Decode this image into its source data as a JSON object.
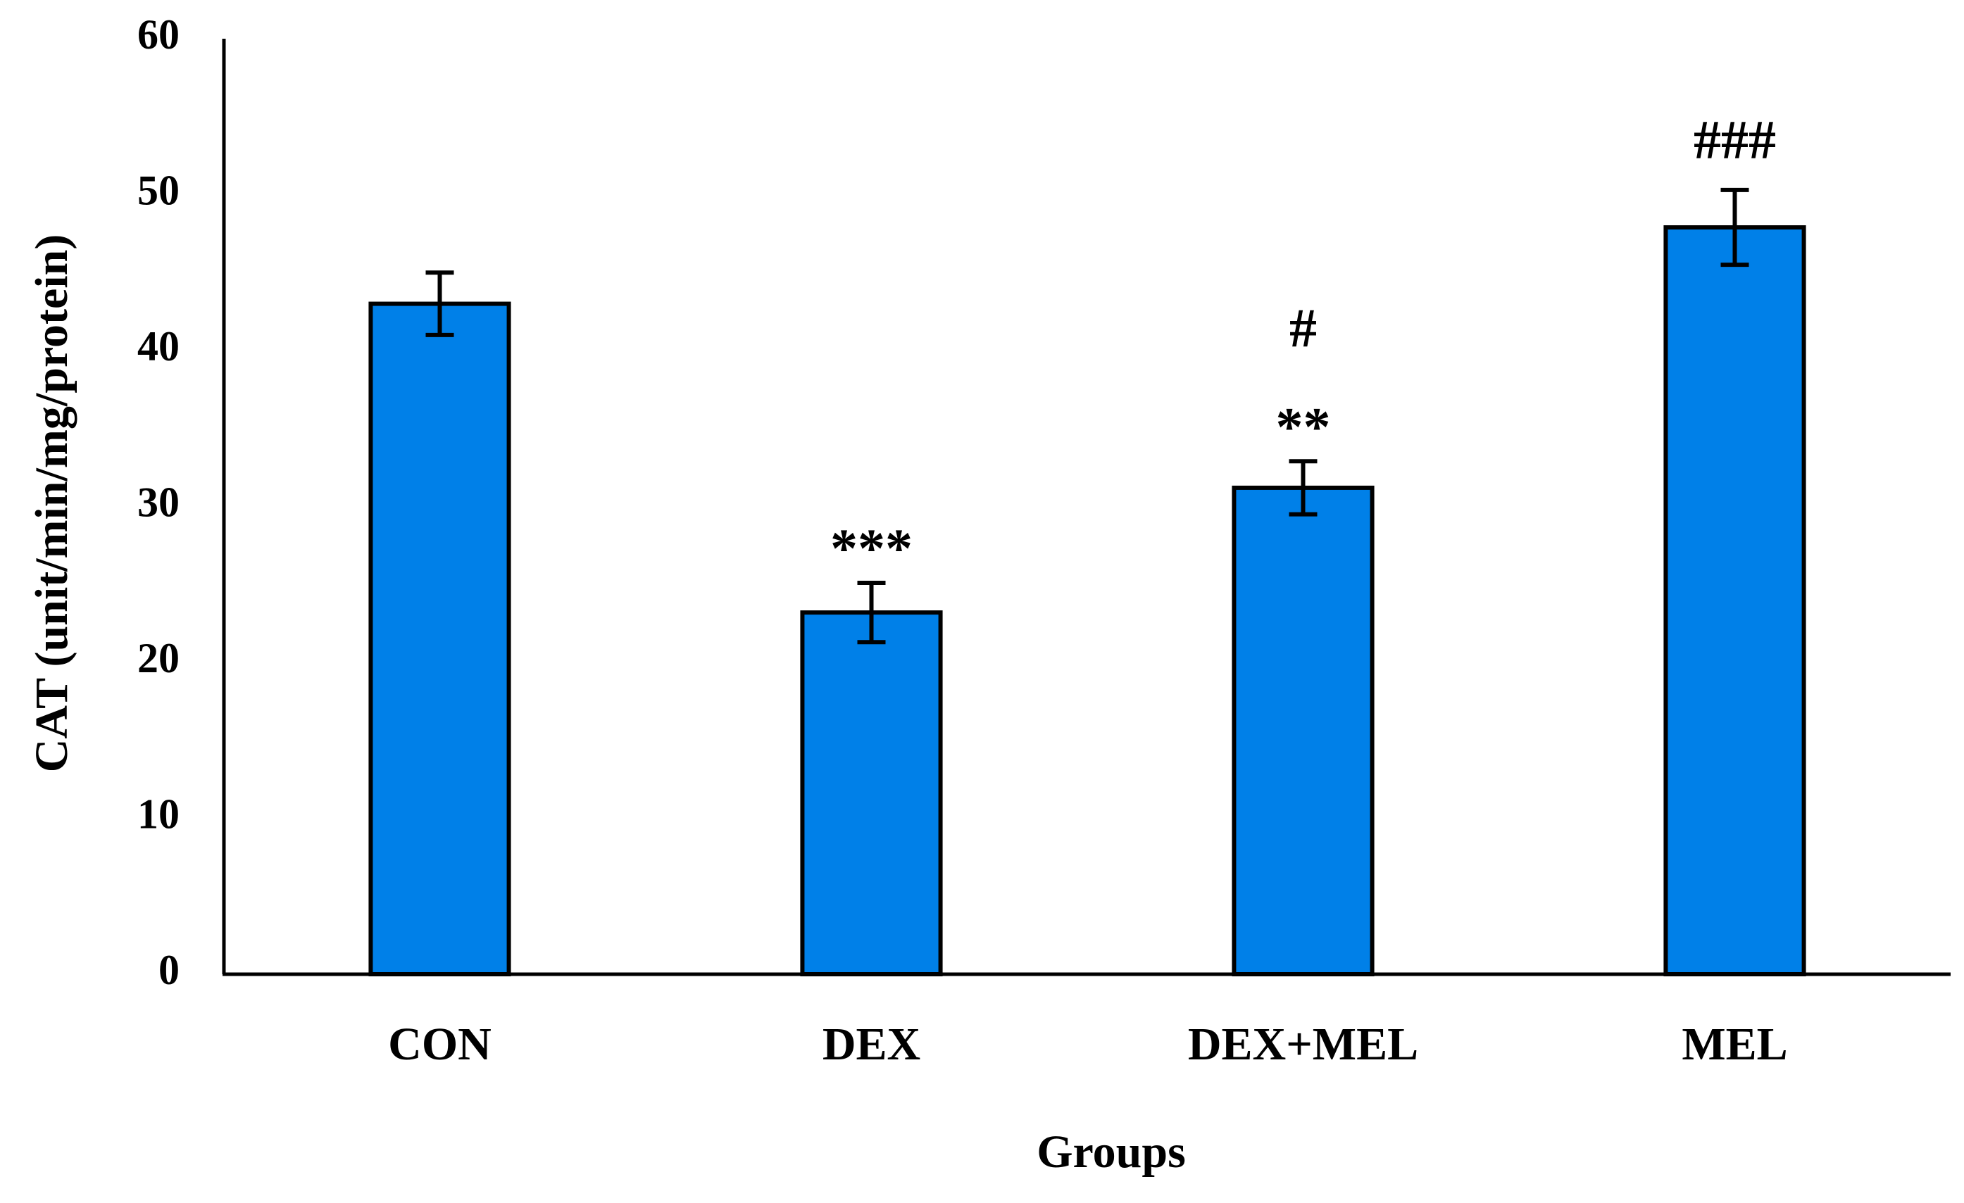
{
  "chart_data": {
    "type": "bar",
    "title": "",
    "xlabel": "Groups",
    "ylabel": "CAT (unit/min/mg/protein)",
    "categories": [
      "CON",
      "DEX",
      "DEX+MEL",
      "MEL"
    ],
    "values": [
      43,
      23.2,
      31.2,
      47.9
    ],
    "errors": [
      2.0,
      1.9,
      1.7,
      2.4
    ],
    "annotations": [
      [],
      [
        "***"
      ],
      [
        "**",
        "#"
      ],
      [
        "###"
      ]
    ],
    "ylim": [
      0,
      60
    ],
    "yticks": [
      0,
      10,
      20,
      30,
      40,
      50,
      60
    ],
    "grid": false,
    "legend": false,
    "bar_color": "#0080E8",
    "edge_color": "#000000"
  }
}
